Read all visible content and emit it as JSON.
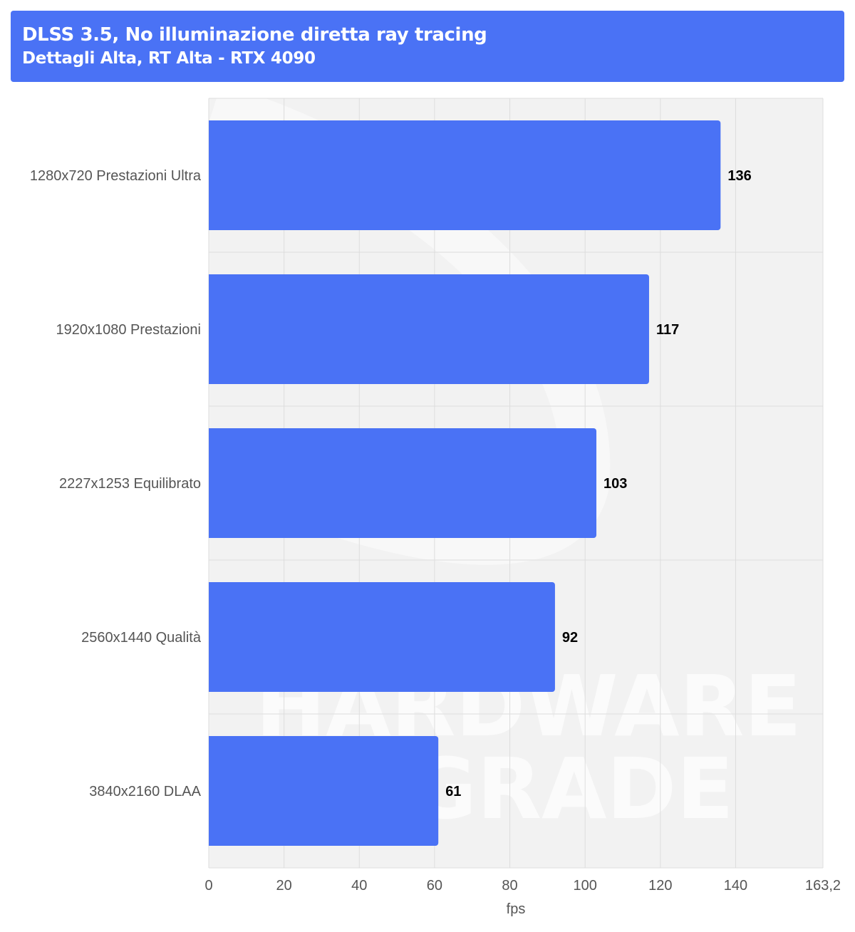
{
  "chart_data": {
    "type": "bar",
    "orientation": "horizontal",
    "title": "DLSS 3.5, No illuminazione diretta ray tracing",
    "subtitle": "Dettagli Alta, RT Alta - RTX 4090",
    "categories": [
      "1280x720 Prestazioni Ultra",
      "1920x1080 Prestazioni",
      "2227x1253 Equilibrato",
      "2560x1440 Qualità",
      "3840x2160 DLAA"
    ],
    "values": [
      136,
      117,
      103,
      92,
      61
    ],
    "xlabel": "fps",
    "ylabel": "",
    "xlim": [
      0,
      163.2
    ],
    "xticks": [
      0,
      20,
      40,
      60,
      80,
      100,
      120,
      140,
      163.2
    ],
    "xtick_labels": [
      "0",
      "20",
      "40",
      "60",
      "80",
      "100",
      "120",
      "140",
      "163,2"
    ],
    "grid": true,
    "legend": "none",
    "bar_color": "#4a72f5"
  },
  "header": {
    "background_color": "#4a72f5"
  },
  "watermark": {
    "lines": [
      "HARDWARE",
      "UPGRADE"
    ]
  }
}
